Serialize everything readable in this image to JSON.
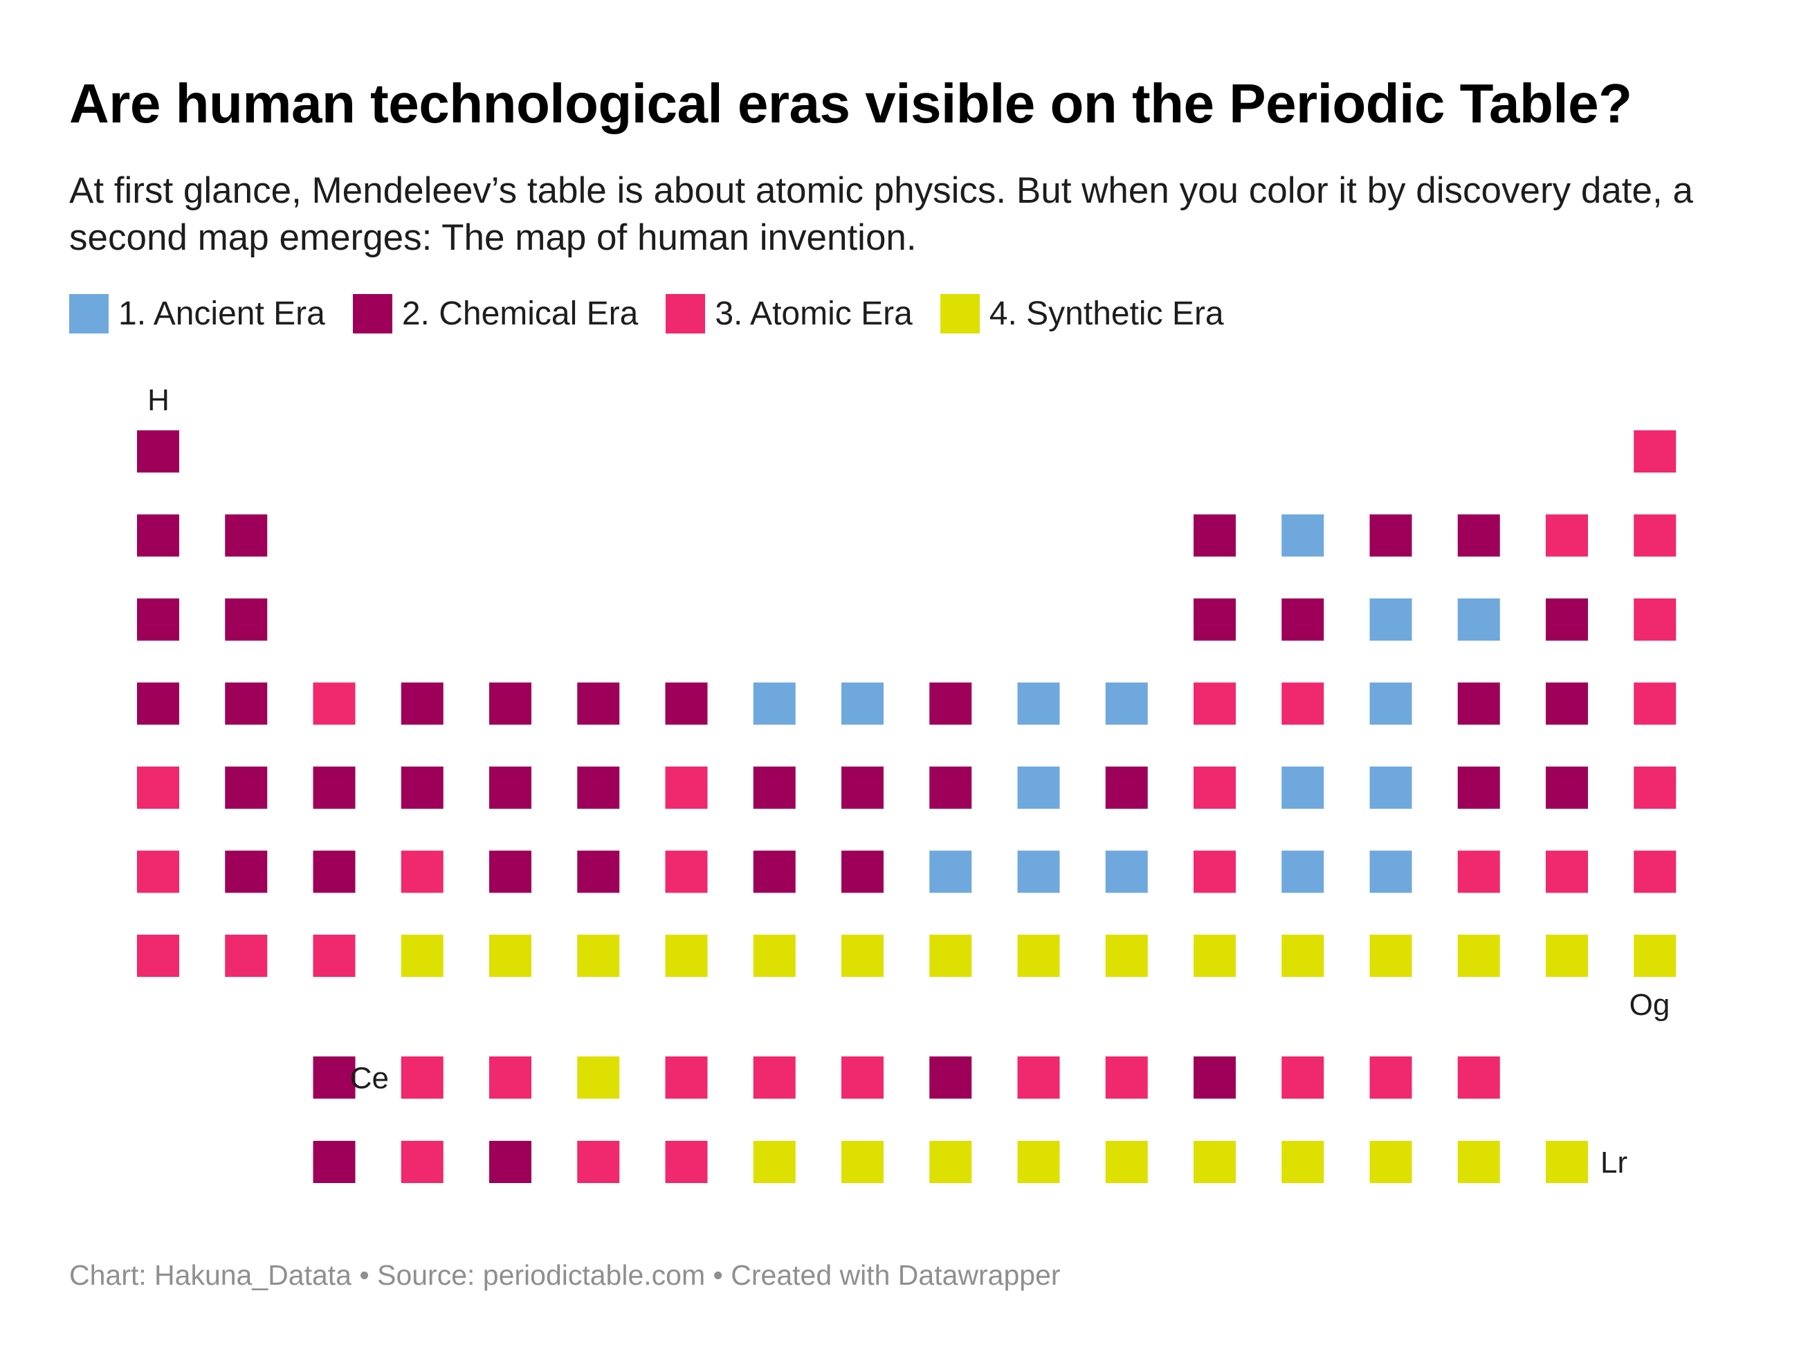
{
  "title": "Are human technological eras visible on the Periodic Table?",
  "subtitle": "At first glance, Mendeleev’s table is about atomic physics. But when you color it by discovery date, a second map emerges: The map of human invention.",
  "footer": "Chart: Hakuna_Datata • Source: periodictable.com • Created with Datawrapper",
  "colors": {
    "ancient": "#6fa8dc",
    "chemical": "#9e0059",
    "atomic": "#f0286e",
    "synthetic": "#dde000"
  },
  "chart_data": {
    "type": "heatmap",
    "legend": [
      {
        "key": "ancient",
        "label": "1. Ancient Era"
      },
      {
        "key": "chemical",
        "label": "2. Chemical Era"
      },
      {
        "key": "atomic",
        "label": "3. Atomic Era"
      },
      {
        "key": "synthetic",
        "label": "4. Synthetic Era"
      }
    ],
    "legend_position": "top-left",
    "grid": false,
    "era_codes": {
      "A": "ancient",
      "C": "chemical",
      "T": "atomic",
      "S": "synthetic",
      ".": null
    },
    "main_table": [
      "C................T",
      "CC..........CACCTT",
      "CC..........CCAACT",
      "CCTCCCCAACAATTACCT",
      "TCCCCCTCCCACTAACCT",
      "TCCTCCTCCAAATAATTT",
      "TTTSSSSSSSSSSSSSSS"
    ],
    "f_block": [
      "..CTTSTTTCTTCTTT.",
      "..CTCTTSSSSSSSSSS"
    ],
    "labels": [
      {
        "text": "H"
      },
      {
        "text": "Og"
      },
      {
        "text": "Ce"
      },
      {
        "text": "Lr"
      }
    ]
  }
}
